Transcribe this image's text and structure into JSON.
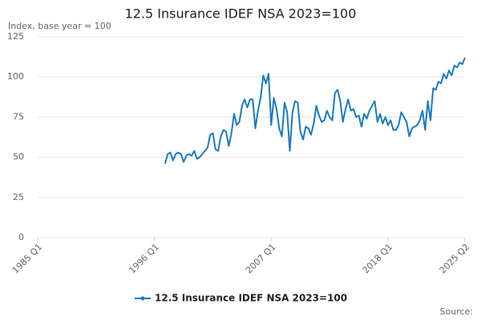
{
  "chart_data": {
    "type": "line",
    "title": "12.5 Insurance IDEF NSA 2023=100",
    "y_label": "Index, base year = 100",
    "source": "Source:",
    "categories": [
      "1985 Q1",
      null,
      null,
      null,
      null,
      null,
      null,
      null,
      null,
      null,
      null,
      null,
      null,
      null,
      null,
      null,
      null,
      null,
      null,
      null,
      null,
      null,
      null,
      null,
      null,
      null,
      null,
      null,
      null,
      null,
      null,
      null,
      null,
      null,
      null,
      null,
      null,
      null,
      null,
      null,
      null,
      null,
      null,
      null,
      "1996 Q1",
      null,
      null,
      null,
      null,
      null,
      null,
      null,
      null,
      null,
      null,
      null,
      null,
      null,
      null,
      null,
      null,
      null,
      null,
      null,
      null,
      null,
      null,
      null,
      null,
      null,
      null,
      null,
      null,
      null,
      null,
      null,
      null,
      null,
      null,
      null,
      null,
      null,
      null,
      null,
      null,
      null,
      null,
      null,
      "2007 Q1",
      null,
      null,
      null,
      null,
      null,
      null,
      null,
      null,
      null,
      null,
      null,
      null,
      null,
      null,
      null,
      null,
      null,
      null,
      null,
      null,
      null,
      null,
      null,
      null,
      null,
      null,
      null,
      null,
      null,
      null,
      null,
      null,
      null,
      null,
      null,
      null,
      null,
      null,
      null,
      null,
      null,
      null,
      null,
      "2018 Q1",
      null,
      null,
      null,
      null,
      null,
      null,
      null,
      null,
      null,
      null,
      null,
      null,
      null,
      null,
      null,
      null,
      null,
      null,
      null,
      null,
      null,
      null,
      null,
      null,
      null,
      null,
      null,
      null,
      "2025 Q2"
    ],
    "series": [
      {
        "name": "12.5 Insurance IDEF NSA 2023=100",
        "color": "#1a7bbf",
        "values": [
          null,
          null,
          null,
          null,
          null,
          null,
          null,
          null,
          null,
          null,
          null,
          null,
          null,
          null,
          null,
          null,
          null,
          null,
          null,
          null,
          null,
          null,
          null,
          null,
          null,
          null,
          null,
          null,
          null,
          null,
          null,
          null,
          null,
          null,
          null,
          null,
          null,
          null,
          null,
          null,
          null,
          null,
          null,
          null,
          null,
          null,
          null,
          null,
          46,
          52,
          53,
          48,
          52,
          53,
          52,
          47,
          51,
          52,
          51,
          54,
          49,
          50,
          52,
          54,
          56,
          64,
          65,
          55,
          54,
          63,
          67,
          66,
          57,
          65,
          77,
          70,
          72,
          82,
          86,
          81,
          86,
          86,
          68,
          79,
          87,
          101,
          96,
          102,
          70,
          87,
          80,
          68,
          63,
          84,
          78,
          54,
          78,
          85,
          84,
          66,
          61,
          69,
          68,
          64,
          71,
          82,
          76,
          72,
          73,
          79,
          75,
          73,
          90,
          92,
          85,
          72,
          80,
          86,
          79,
          80,
          75,
          76,
          69,
          77,
          74,
          79,
          82,
          85,
          72,
          77,
          71,
          75,
          70,
          73,
          67,
          67,
          70,
          78,
          75,
          72,
          63,
          68,
          69,
          70,
          73,
          79,
          67,
          85,
          73,
          93,
          92,
          97,
          96,
          102,
          99,
          104,
          101,
          107,
          106,
          109,
          108,
          112
        ]
      }
    ],
    "ylim": [
      0,
      125
    ],
    "yticks": [
      0,
      25,
      50,
      75,
      100,
      125
    ],
    "grid": true,
    "legend": "bottom"
  }
}
